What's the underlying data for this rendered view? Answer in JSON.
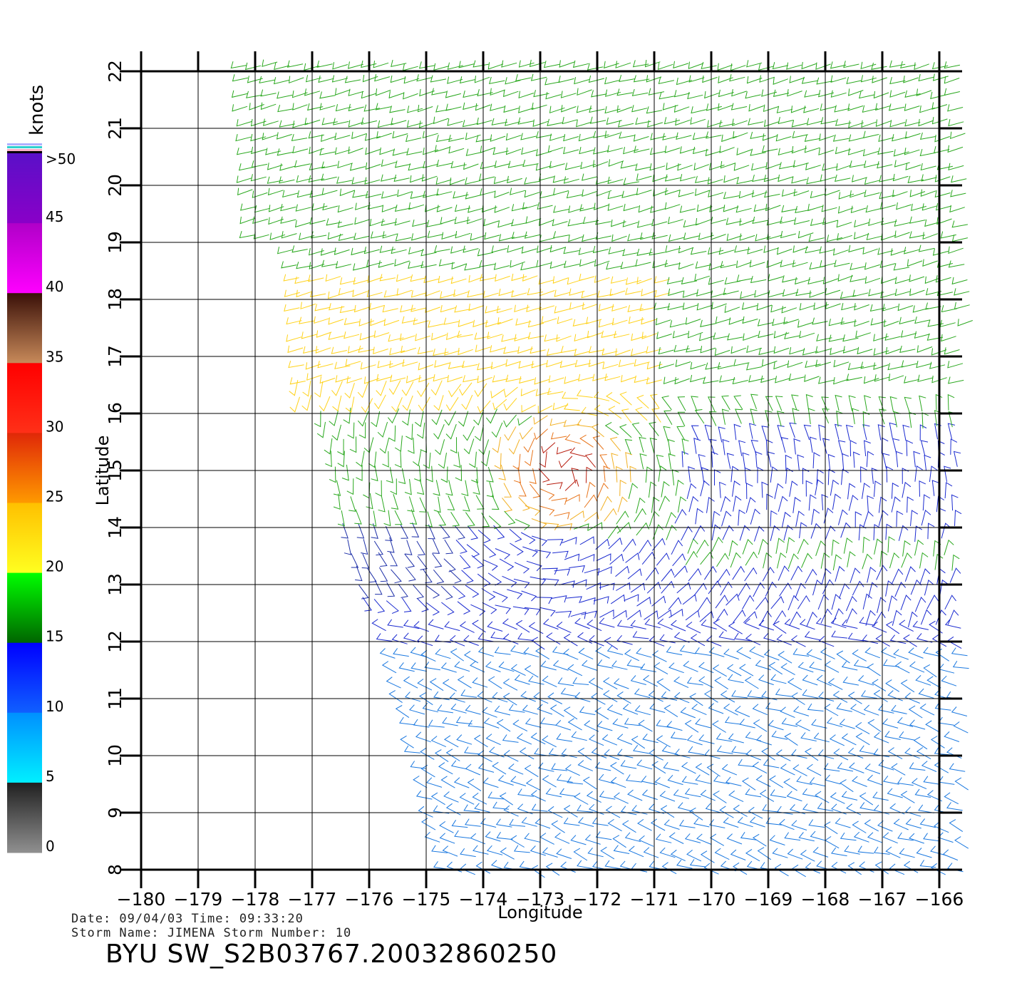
{
  "legend": {
    "unit": "knots",
    "ticks": [
      ">50",
      "45",
      "40",
      "35",
      "30",
      "25",
      "20",
      "15",
      "10",
      "5",
      "0"
    ],
    "bands": [
      {
        "from": 45,
        "to": 50,
        "top": "#5a10c8",
        "bottom": "#8a00c8"
      },
      {
        "from": 40,
        "to": 45,
        "top": "#b000c8",
        "bottom": "#ff00ff"
      },
      {
        "from": 35,
        "to": 40,
        "top": "#3a1008",
        "bottom": "#c88a5a"
      },
      {
        "from": 30,
        "to": 35,
        "top": "#ff0000",
        "bottom": "#ff3018"
      },
      {
        "from": 25,
        "to": 30,
        "top": "#e02808",
        "bottom": "#ff9a00"
      },
      {
        "from": 20,
        "to": 25,
        "top": "#ffc000",
        "bottom": "#ffff20"
      },
      {
        "from": 15,
        "to": 20,
        "top": "#00ff00",
        "bottom": "#006400"
      },
      {
        "from": 10,
        "to": 15,
        "top": "#0000ff",
        "bottom": "#1060ff"
      },
      {
        "from": 5,
        "to": 10,
        "top": "#0090ff",
        "bottom": "#00f0ff"
      },
      {
        "from": 0,
        "to": 5,
        "top": "#202020",
        "bottom": "#909090"
      }
    ]
  },
  "map": {
    "xlabel": "Longitude",
    "ylabel": "Latitude",
    "lon_range": [
      -180,
      -166
    ],
    "lat_range": [
      8,
      22
    ],
    "lon_ticks": [
      "-180",
      "-179",
      "-178",
      "-177",
      "-176",
      "-175",
      "-174",
      "-173",
      "-172",
      "-171",
      "-170",
      "-169",
      "-168",
      "-167",
      "-166"
    ],
    "lat_ticks": [
      "22",
      "21",
      "20",
      "19",
      "18",
      "17",
      "16",
      "15",
      "14",
      "13",
      "12",
      "11",
      "10",
      "9",
      "8"
    ]
  },
  "wind_regions": [
    {
      "color": "#2aa81e",
      "lat": [
        18.5,
        22.1
      ]
    },
    {
      "color": "#ffd21a",
      "lat": [
        16.0,
        18.5
      ]
    },
    {
      "color": "#1a2ad0",
      "lat": [
        12.0,
        14.0
      ]
    },
    {
      "color": "#1a78e0",
      "lat": [
        8.0,
        12.0
      ]
    }
  ],
  "info": {
    "date_line": "Date: 09/04/03   Time: 09:33:20",
    "storm_line": "Storm Name: JIMENA   Storm Number: 10",
    "product": "BYU SW_S2B03767.20032860250"
  }
}
